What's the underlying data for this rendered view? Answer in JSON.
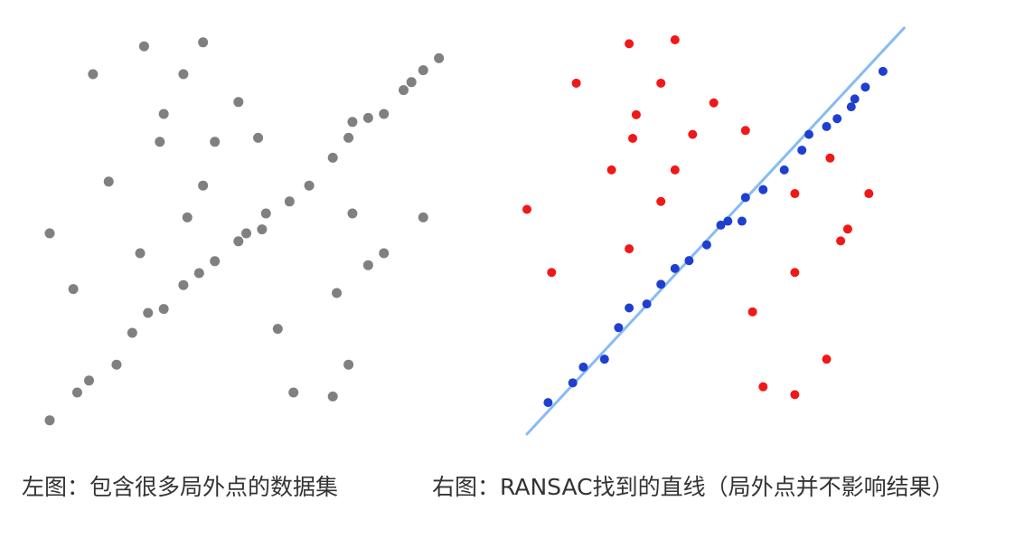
{
  "captions": {
    "left": "左图：包含很多局外点的数据集",
    "right": "右图：RANSAC找到的直线（局外点并不影响结果）"
  },
  "colors": {
    "gray_point": "#808080",
    "inlier": "#1f3fd0",
    "outlier": "#f01818",
    "fit_line": "#88bbf5"
  },
  "chart_data": [
    {
      "type": "scatter",
      "title": "",
      "xlabel": "",
      "ylabel": "",
      "xlim": [
        0,
        100
      ],
      "ylim": [
        0,
        100
      ],
      "grid": false,
      "axes_visible": false,
      "series": [
        {
          "color": "#808080",
          "points": [
            [
              0,
              3
            ],
            [
              7,
              10
            ],
            [
              10,
              13
            ],
            [
              17,
              17
            ],
            [
              21,
              25
            ],
            [
              25,
              30
            ],
            [
              29,
              31
            ],
            [
              34,
              37
            ],
            [
              38,
              40
            ],
            [
              42,
              43
            ],
            [
              48,
              48
            ],
            [
              50,
              50
            ],
            [
              54,
              51
            ],
            [
              55,
              55
            ],
            [
              61,
              58
            ],
            [
              66,
              62
            ],
            [
              72,
              69
            ],
            [
              76,
              74
            ],
            [
              77,
              78
            ],
            [
              81,
              79
            ],
            [
              85,
              80
            ],
            [
              90,
              86
            ],
            [
              92,
              88
            ],
            [
              95,
              91
            ],
            [
              99,
              94
            ],
            [
              24,
              97
            ],
            [
              39,
              98
            ],
            [
              11,
              90
            ],
            [
              34,
              90
            ],
            [
              29,
              80
            ],
            [
              48,
              83
            ],
            [
              28,
              73
            ],
            [
              42,
              73
            ],
            [
              53,
              74
            ],
            [
              15,
              63
            ],
            [
              39,
              62
            ],
            [
              35,
              54
            ],
            [
              0,
              50
            ],
            [
              23,
              45
            ],
            [
              6,
              36
            ],
            [
              77,
              55
            ],
            [
              85,
              45
            ],
            [
              95,
              54
            ],
            [
              81,
              42
            ],
            [
              73,
              35
            ],
            [
              58,
              26
            ],
            [
              76,
              17
            ],
            [
              62,
              10
            ],
            [
              72,
              9
            ]
          ]
        }
      ]
    },
    {
      "type": "scatter",
      "title": "",
      "xlabel": "",
      "ylabel": "",
      "xlim": [
        0,
        100
      ],
      "ylim": [
        0,
        100
      ],
      "grid": false,
      "axes_visible": false,
      "series": [
        {
          "color": "#1f3fd0",
          "points": [
            [
              6,
              8
            ],
            [
              13,
              13
            ],
            [
              16,
              17
            ],
            [
              22,
              19
            ],
            [
              26,
              27
            ],
            [
              29,
              32
            ],
            [
              34,
              33
            ],
            [
              38,
              38
            ],
            [
              42,
              42
            ],
            [
              46,
              44
            ],
            [
              51,
              48
            ],
            [
              55,
              53
            ],
            [
              57,
              54
            ],
            [
              61,
              54
            ],
            [
              62,
              60
            ],
            [
              67,
              62
            ],
            [
              73,
              67
            ],
            [
              78,
              72
            ],
            [
              80,
              76
            ],
            [
              85,
              78
            ],
            [
              88,
              80
            ],
            [
              92,
              83
            ],
            [
              93,
              85
            ],
            [
              96,
              88
            ],
            [
              101,
              92
            ]
          ]
        },
        {
          "color": "#f01818",
          "points": [
            [
              29,
              99
            ],
            [
              42,
              100
            ],
            [
              14,
              89
            ],
            [
              38,
              89
            ],
            [
              53,
              84
            ],
            [
              31,
              81
            ],
            [
              62,
              77
            ],
            [
              30,
              75
            ],
            [
              47,
              76
            ],
            [
              24,
              67
            ],
            [
              42,
              67
            ],
            [
              86,
              70
            ],
            [
              0,
              57
            ],
            [
              38,
              59
            ],
            [
              76,
              61
            ],
            [
              97,
              61
            ],
            [
              29,
              47
            ],
            [
              89,
              49
            ],
            [
              91,
              52
            ],
            [
              7,
              41
            ],
            [
              76,
              41
            ],
            [
              64,
              31
            ],
            [
              85,
              19
            ],
            [
              67,
              12
            ],
            [
              76,
              10
            ]
          ]
        },
        {
          "type": "line",
          "color": "#88bbf5",
          "points": [
            [
              0,
              0
            ],
            [
              107,
              103
            ]
          ]
        }
      ]
    }
  ]
}
